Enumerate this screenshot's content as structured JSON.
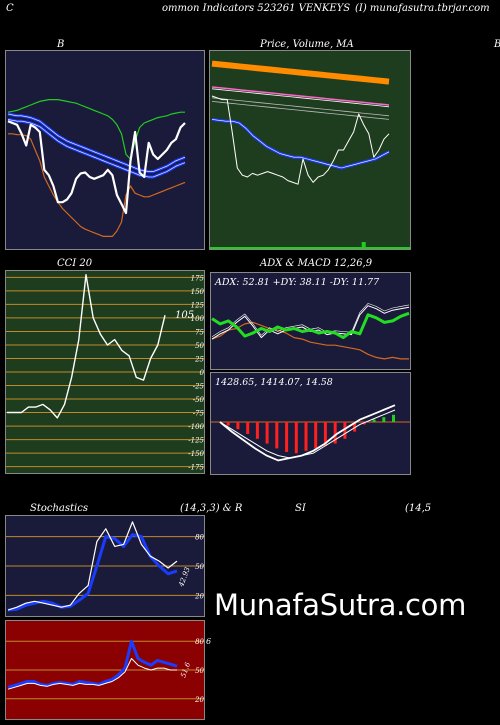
{
  "header": {
    "left": "C",
    "center": "ommon  Indicators 523261 VENKEYS",
    "right": "(I) munafasutra.tbrjar.com"
  },
  "titles": {
    "bb": "B",
    "price": "Price,  Volume,  MA",
    "price_extra": "B",
    "cci": "CCI 20",
    "adx": "ADX  & MACD 12,26,9",
    "stoch_left": "Stochastics",
    "stoch_params": "(14,3,3) & R",
    "rsi_label": "SI",
    "rsi_params": "(14,5"
  },
  "watermark": "MunafaSutra.com",
  "colors": {
    "panel_navy": "#1a1a3a",
    "panel_green": "#1e3d1e",
    "panel_red": "#8b0000",
    "blue": "#1a3cff",
    "orange": "#d2691e",
    "green_line": "#22cc22",
    "white": "#ffffff"
  },
  "chart_data": [
    {
      "type": "line",
      "name_panel": "bollinger",
      "series": [
        {
          "color": "white",
          "values": [
            132,
            130,
            128,
            118,
            105,
            128,
            125,
            120,
            78,
            72,
            60,
            42,
            42,
            45,
            52,
            68,
            74,
            75,
            70,
            68,
            70,
            72,
            78,
            72,
            50,
            40,
            30,
            88,
            120,
            75,
            70,
            108,
            95,
            90,
            95,
            100,
            108,
            112,
            125,
            130
          ]
        },
        {
          "color": "blue-upper",
          "values": [
            140,
            139,
            138,
            138,
            137,
            136,
            134,
            132,
            128,
            124,
            120,
            116,
            113,
            110,
            108,
            106,
            104,
            102,
            100,
            98,
            96,
            94,
            92,
            90,
            88,
            86,
            84,
            82,
            80,
            78,
            77,
            76,
            76,
            78,
            80,
            82,
            85,
            88,
            90,
            92
          ]
        },
        {
          "color": "blue-mid",
          "values": [
            134,
            133,
            132,
            132,
            131,
            130,
            128,
            126,
            122,
            118,
            114,
            110,
            107,
            104,
            102,
            100,
            98,
            96,
            94,
            92,
            90,
            88,
            86,
            84,
            82,
            80,
            78,
            76,
            74,
            72,
            71,
            70,
            70,
            72,
            74,
            76,
            79,
            82,
            84,
            86
          ]
        },
        {
          "color": "green-upper",
          "values": [
            142,
            143,
            144,
            146,
            148,
            150,
            152,
            154,
            155,
            156,
            156,
            156,
            155,
            154,
            153,
            152,
            150,
            148,
            146,
            144,
            142,
            140,
            138,
            134,
            128,
            118,
            95,
            90,
            110,
            125,
            130,
            132,
            134,
            136,
            137,
            138,
            140,
            141,
            142,
            142
          ]
        },
        {
          "color": "orange-lower",
          "values": [
            118,
            118,
            117,
            117,
            116,
            112,
            100,
            88,
            70,
            60,
            50,
            42,
            35,
            30,
            25,
            20,
            15,
            12,
            10,
            8,
            6,
            4,
            4,
            4,
            10,
            20,
            50,
            60,
            52,
            50,
            48,
            48,
            50,
            52,
            54,
            56,
            58,
            60,
            62,
            64
          ]
        }
      ]
    },
    {
      "type": "line",
      "name_panel": "price_volume_ma",
      "series": [
        {
          "color": "orange-ma",
          "values": [
            196,
            195,
            194,
            193,
            192,
            191,
            190,
            189,
            188,
            187,
            186,
            185,
            184,
            183,
            182,
            181,
            180,
            179,
            178,
            177,
            176
          ]
        },
        {
          "color": "white-price",
          "values": [
            160,
            158,
            156,
            156,
            120,
            80,
            72,
            70,
            74,
            72,
            74,
            76,
            74,
            72,
            70,
            66,
            64,
            62,
            90,
            72,
            64,
            70,
            72,
            78,
            88,
            100,
            100,
            110,
            120,
            140,
            128,
            118,
            92,
            100,
            112,
            118
          ]
        },
        {
          "color": "blue-ma",
          "values": [
            134,
            133,
            132,
            132,
            130,
            124,
            116,
            110,
            104,
            100,
            96,
            94,
            92,
            92,
            90,
            88,
            86,
            84,
            82,
            80,
            82,
            84,
            86,
            88,
            90,
            94,
            98
          ]
        }
      ],
      "volume": [
        0,
        0,
        0,
        0,
        0,
        0,
        0,
        0,
        0,
        0,
        0,
        0,
        0,
        0,
        0,
        0,
        0,
        0,
        0,
        0,
        0,
        0,
        0,
        0,
        0,
        0,
        0,
        0,
        0,
        0,
        5,
        0,
        0,
        0,
        0,
        0
      ]
    },
    {
      "type": "line",
      "name_panel": "cci",
      "value_label": "105",
      "ticks": [
        "175",
        "150",
        "125",
        "100",
        "75",
        "50",
        "25",
        "0",
        "-25",
        "-50",
        "-75",
        "-100",
        "-125",
        "-150",
        "-175"
      ],
      "ylim": [
        -185,
        185
      ],
      "values": [
        -75,
        -75,
        -75,
        -65,
        -65,
        -60,
        -70,
        -85,
        -60,
        -10,
        60,
        180,
        100,
        70,
        50,
        60,
        40,
        30,
        -10,
        -15,
        25,
        50,
        105
      ]
    },
    {
      "type": "line",
      "name_panel": "adx",
      "label": "ADX: 52.81  +DY: 38.11  -DY: 11.77",
      "series": [
        {
          "color": "green-adx",
          "values": [
            65,
            58,
            62,
            54,
            42,
            46,
            52,
            48,
            54,
            50,
            52,
            48,
            50,
            46,
            48,
            46,
            40,
            48,
            45,
            70,
            66,
            60,
            62,
            68,
            72
          ]
        },
        {
          "color": "orange-dy",
          "values": [
            38,
            42,
            50,
            52,
            58,
            60,
            56,
            52,
            50,
            46,
            40,
            38,
            34,
            32,
            30,
            30,
            28,
            26,
            24,
            18,
            14,
            12,
            14,
            12,
            12
          ]
        },
        {
          "color": "white-dy",
          "values": [
            38,
            45,
            50,
            60,
            68,
            55,
            40,
            50,
            45,
            50,
            52,
            54,
            48,
            50,
            44,
            46,
            45,
            44,
            70,
            82,
            78,
            72,
            76,
            78,
            80
          ]
        }
      ]
    },
    {
      "type": "bar",
      "name_panel": "macd",
      "label": "1428.65,  1414.07,  14.58",
      "histogram": [
        0,
        -3,
        -6,
        -10,
        -14,
        -18,
        -22,
        -25,
        -26,
        -24,
        -22,
        -20,
        -18,
        -14,
        -8,
        -2,
        2,
        4,
        6
      ],
      "series": [
        {
          "color": "white-macd",
          "values": [
            0,
            -8,
            -15,
            -22,
            -28,
            -32,
            -30,
            -28,
            -24,
            -18,
            -10,
            -4,
            2,
            6,
            10,
            14
          ]
        },
        {
          "color": "white-signal",
          "values": [
            0,
            -6,
            -12,
            -18,
            -24,
            -28,
            -30,
            -28,
            -26,
            -20,
            -14,
            -8,
            -2,
            2,
            6,
            10
          ]
        }
      ]
    },
    {
      "type": "line",
      "name_panel": "stochastics",
      "value_label": "42.93",
      "ticks": [
        "80",
        "50",
        "20"
      ],
      "ylim": [
        0,
        100
      ],
      "series": [
        {
          "color": "white-k",
          "values": [
            5,
            8,
            12,
            14,
            12,
            10,
            8,
            10,
            22,
            30,
            75,
            88,
            70,
            72,
            95,
            72,
            60,
            55,
            48,
            55
          ]
        },
        {
          "color": "blue-d",
          "values": [
            5,
            6,
            10,
            12,
            14,
            12,
            8,
            9,
            15,
            22,
            50,
            80,
            78,
            70,
            82,
            80,
            60,
            50,
            42,
            45
          ]
        }
      ]
    },
    {
      "type": "line",
      "name_panel": "rsi",
      "value_label": "51.6",
      "ticks": [
        "80",
        "50",
        "20"
      ],
      "ylim": [
        0,
        100
      ],
      "series": [
        {
          "color": "blue-rsi",
          "values": [
            32,
            34,
            36,
            38,
            38,
            35,
            34,
            36,
            37,
            36,
            35,
            38,
            37,
            36,
            35,
            38,
            40,
            45,
            52,
            80,
            62,
            58,
            55,
            60,
            58,
            56,
            54
          ]
        },
        {
          "color": "white-rsi",
          "values": [
            30,
            32,
            34,
            36,
            36,
            34,
            33,
            35,
            36,
            35,
            34,
            36,
            35,
            35,
            34,
            36,
            38,
            42,
            48,
            62,
            55,
            52,
            50,
            52,
            52,
            50,
            50
          ]
        }
      ]
    }
  ]
}
